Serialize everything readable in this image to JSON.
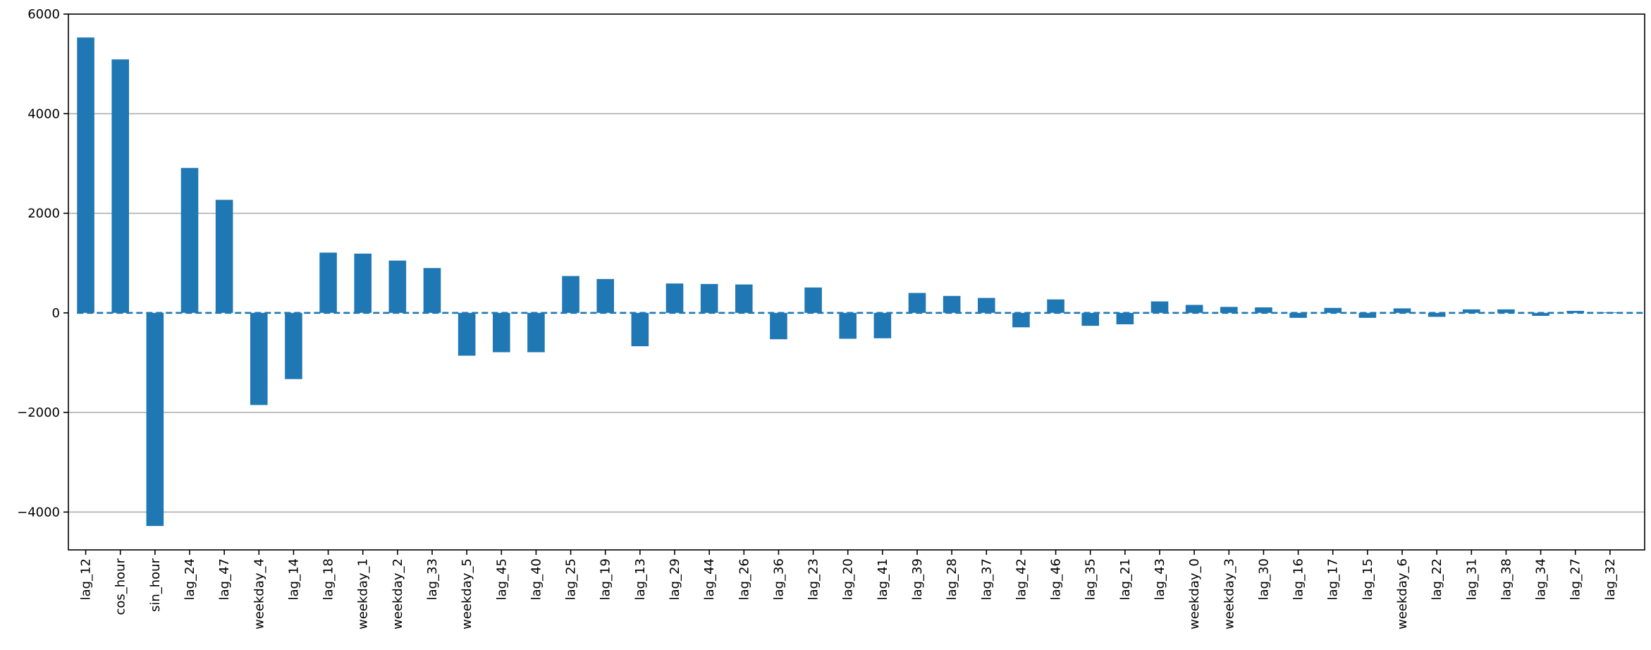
{
  "chart_data": {
    "type": "bar",
    "title": "",
    "xlabel": "",
    "ylabel": "",
    "ylim": [
      -4760,
      6000
    ],
    "yticks": [
      -4000,
      -2000,
      0,
      2000,
      4000,
      6000
    ],
    "ytick_labels": [
      "−4000",
      "−2000",
      "0",
      "2000",
      "4000",
      "6000"
    ],
    "grid": "horizontal",
    "reference_line": {
      "y": 0,
      "style": "dashed"
    },
    "colors": {
      "bar": "#1f77b4",
      "reference_line": "#1f77b4",
      "grid": "#b0b0b0",
      "axis": "#000000"
    },
    "categories": [
      "lag_12",
      "cos_hour",
      "sin_hour",
      "lag_24",
      "lag_47",
      "weekday_4",
      "lag_14",
      "lag_18",
      "weekday_1",
      "weekday_2",
      "lag_33",
      "weekday_5",
      "lag_45",
      "lag_40",
      "lag_25",
      "lag_19",
      "lag_13",
      "lag_29",
      "lag_44",
      "lag_26",
      "lag_36",
      "lag_23",
      "lag_20",
      "lag_41",
      "lag_39",
      "lag_28",
      "lag_37",
      "lag_42",
      "lag_46",
      "lag_35",
      "lag_21",
      "lag_43",
      "weekday_0",
      "weekday_3",
      "lag_30",
      "lag_16",
      "lag_17",
      "lag_15",
      "weekday_6",
      "lag_22",
      "lag_31",
      "lag_38",
      "lag_34",
      "lag_27",
      "lag_32"
    ],
    "values": [
      5530,
      5090,
      -4280,
      2910,
      2270,
      -1850,
      -1330,
      1210,
      1190,
      1050,
      900,
      -860,
      -790,
      -790,
      740,
      680,
      -670,
      590,
      580,
      570,
      -530,
      510,
      -520,
      -510,
      400,
      340,
      300,
      -290,
      270,
      -260,
      -230,
      230,
      160,
      120,
      110,
      -100,
      100,
      -100,
      90,
      -80,
      70,
      70,
      -60,
      40,
      10
    ]
  }
}
